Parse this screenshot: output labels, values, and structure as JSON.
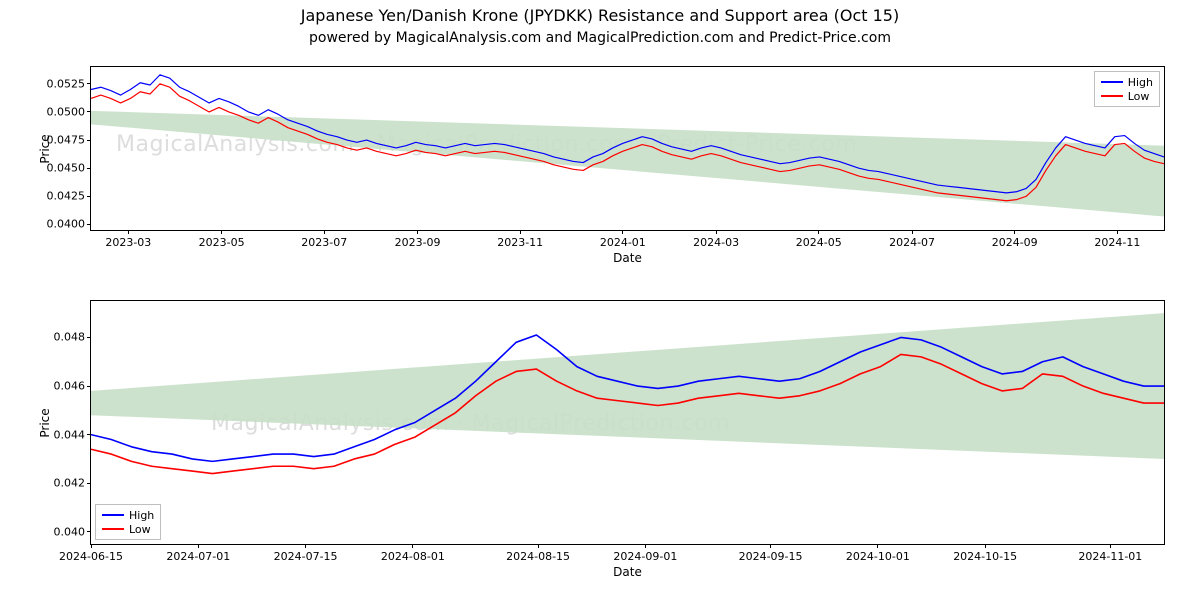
{
  "title": "Japanese Yen/Danish Krone (JPYDKK) Resistance and Support area (Oct 15)",
  "subtitle": "powered by MagicalAnalysis.com and MagicalPrediction.com and Predict-Price.com",
  "watermark_text_1": "MagicalAnalysis.com   ·   MagicalPrediction.com   ·   Predict-Price.com",
  "watermark_text_2": "MagicalAnalysis.com   ·   MagicalPrediction.com",
  "legend_high": "High",
  "legend_low": "Low",
  "xlabel": "Date",
  "ylabel": "Price",
  "colors": {
    "series_high": "#0000ff",
    "series_low": "#ff0000",
    "support_fill": "#c7dfc7",
    "axis": "#000000",
    "legend_border": "#bfbfbf",
    "watermark": "#dddddd",
    "background": "#ffffff"
  },
  "top_chart": {
    "type": "line",
    "line_width": 1.2,
    "ylim": [
      0.0395,
      0.054
    ],
    "yticks": [
      0.04,
      0.0425,
      0.045,
      0.0475,
      0.05,
      0.0525
    ],
    "ytick_labels": [
      "0.0400",
      "0.0425",
      "0.0450",
      "0.0475",
      "0.0500",
      "0.0525"
    ],
    "xlim": [
      0,
      115
    ],
    "xticks": [
      4,
      14,
      25,
      35,
      46,
      57,
      67,
      78,
      88,
      99,
      110
    ],
    "xtick_labels": [
      "2023-03",
      "2023-05",
      "2023-07",
      "2023-09",
      "2023-11",
      "2024-01",
      "2024-03",
      "2024-05",
      "2024-07",
      "2024-09",
      "2024-11"
    ],
    "support_polygon": [
      [
        0,
        0.0501
      ],
      [
        115,
        0.047
      ],
      [
        115,
        0.0407
      ],
      [
        0,
        0.0489
      ]
    ],
    "series_high": [
      0.052,
      0.0522,
      0.0519,
      0.0515,
      0.052,
      0.0526,
      0.0524,
      0.0533,
      0.053,
      0.0522,
      0.0518,
      0.0513,
      0.0508,
      0.0512,
      0.0509,
      0.0505,
      0.05,
      0.0497,
      0.0502,
      0.0498,
      0.0493,
      0.049,
      0.0487,
      0.0483,
      0.048,
      0.0478,
      0.0475,
      0.0473,
      0.0475,
      0.0472,
      0.047,
      0.0468,
      0.047,
      0.0473,
      0.0471,
      0.047,
      0.0468,
      0.047,
      0.0472,
      0.047,
      0.0471,
      0.0472,
      0.0471,
      0.0469,
      0.0467,
      0.0465,
      0.0463,
      0.046,
      0.0458,
      0.0456,
      0.0455,
      0.046,
      0.0463,
      0.0468,
      0.0472,
      0.0475,
      0.0478,
      0.0476,
      0.0472,
      0.0469,
      0.0467,
      0.0465,
      0.0468,
      0.047,
      0.0468,
      0.0465,
      0.0462,
      0.046,
      0.0458,
      0.0456,
      0.0454,
      0.0455,
      0.0457,
      0.0459,
      0.046,
      0.0458,
      0.0456,
      0.0453,
      0.045,
      0.0448,
      0.0447,
      0.0445,
      0.0443,
      0.0441,
      0.0439,
      0.0437,
      0.0435,
      0.0434,
      0.0433,
      0.0432,
      0.0431,
      0.043,
      0.0429,
      0.0428,
      0.0429,
      0.0432,
      0.044,
      0.0455,
      0.0468,
      0.0478,
      0.0475,
      0.0472,
      0.047,
      0.0468,
      0.0478,
      0.0479,
      0.0472,
      0.0466,
      0.0463,
      0.046
    ],
    "series_low": [
      0.0512,
      0.0515,
      0.0512,
      0.0508,
      0.0512,
      0.0518,
      0.0516,
      0.0525,
      0.0522,
      0.0514,
      0.051,
      0.0505,
      0.05,
      0.0504,
      0.05,
      0.0497,
      0.0493,
      0.049,
      0.0495,
      0.0491,
      0.0486,
      0.0483,
      0.048,
      0.0476,
      0.0473,
      0.0471,
      0.0468,
      0.0466,
      0.0468,
      0.0465,
      0.0463,
      0.0461,
      0.0463,
      0.0466,
      0.0464,
      0.0463,
      0.0461,
      0.0463,
      0.0465,
      0.0463,
      0.0464,
      0.0465,
      0.0464,
      0.0462,
      0.046,
      0.0458,
      0.0456,
      0.0453,
      0.0451,
      0.0449,
      0.0448,
      0.0453,
      0.0456,
      0.0461,
      0.0465,
      0.0468,
      0.0471,
      0.0469,
      0.0465,
      0.0462,
      0.046,
      0.0458,
      0.0461,
      0.0463,
      0.0461,
      0.0458,
      0.0455,
      0.0453,
      0.0451,
      0.0449,
      0.0447,
      0.0448,
      0.045,
      0.0452,
      0.0453,
      0.0451,
      0.0449,
      0.0446,
      0.0443,
      0.0441,
      0.044,
      0.0438,
      0.0436,
      0.0434,
      0.0432,
      0.043,
      0.0428,
      0.0427,
      0.0426,
      0.0425,
      0.0424,
      0.0423,
      0.0422,
      0.0421,
      0.0422,
      0.0425,
      0.0433,
      0.0448,
      0.0461,
      0.0471,
      0.0468,
      0.0465,
      0.0463,
      0.0461,
      0.0471,
      0.0472,
      0.0465,
      0.0459,
      0.0456,
      0.0454
    ]
  },
  "bottom_chart": {
    "type": "line",
    "line_width": 1.6,
    "ylim": [
      0.0395,
      0.0495
    ],
    "yticks": [
      0.04,
      0.042,
      0.044,
      0.046,
      0.048
    ],
    "ytick_labels": [
      "0.040",
      "0.042",
      "0.044",
      "0.046",
      "0.048"
    ],
    "xlim": [
      0,
      60
    ],
    "xticks": [
      0,
      6,
      12,
      18,
      25,
      31,
      38,
      44,
      50,
      57
    ],
    "xtick_labels": [
      "2024-06-15",
      "2024-07-01",
      "2024-07-15",
      "2024-08-01",
      "2024-08-15",
      "2024-09-01",
      "2024-09-15",
      "2024-10-01",
      "2024-10-15",
      "2024-11-01"
    ],
    "support_polygon": [
      [
        0,
        0.0458
      ],
      [
        60,
        0.049
      ],
      [
        60,
        0.043
      ],
      [
        0,
        0.0448
      ]
    ],
    "series_high": [
      0.044,
      0.0438,
      0.0435,
      0.0433,
      0.0432,
      0.043,
      0.0429,
      0.043,
      0.0431,
      0.0432,
      0.0432,
      0.0431,
      0.0432,
      0.0435,
      0.0438,
      0.0442,
      0.0445,
      0.045,
      0.0455,
      0.0462,
      0.047,
      0.0478,
      0.0481,
      0.0475,
      0.0468,
      0.0464,
      0.0462,
      0.046,
      0.0459,
      0.046,
      0.0462,
      0.0463,
      0.0464,
      0.0463,
      0.0462,
      0.0463,
      0.0466,
      0.047,
      0.0474,
      0.0477,
      0.048,
      0.0479,
      0.0476,
      0.0472,
      0.0468,
      0.0465,
      0.0466,
      0.047,
      0.0472,
      0.0468,
      0.0465,
      0.0462,
      0.046,
      0.046
    ],
    "series_low": [
      0.0434,
      0.0432,
      0.0429,
      0.0427,
      0.0426,
      0.0425,
      0.0424,
      0.0425,
      0.0426,
      0.0427,
      0.0427,
      0.0426,
      0.0427,
      0.043,
      0.0432,
      0.0436,
      0.0439,
      0.0444,
      0.0449,
      0.0456,
      0.0462,
      0.0466,
      0.0467,
      0.0462,
      0.0458,
      0.0455,
      0.0454,
      0.0453,
      0.0452,
      0.0453,
      0.0455,
      0.0456,
      0.0457,
      0.0456,
      0.0455,
      0.0456,
      0.0458,
      0.0461,
      0.0465,
      0.0468,
      0.0473,
      0.0472,
      0.0469,
      0.0465,
      0.0461,
      0.0458,
      0.0459,
      0.0465,
      0.0464,
      0.046,
      0.0457,
      0.0455,
      0.0453,
      0.0453
    ]
  }
}
